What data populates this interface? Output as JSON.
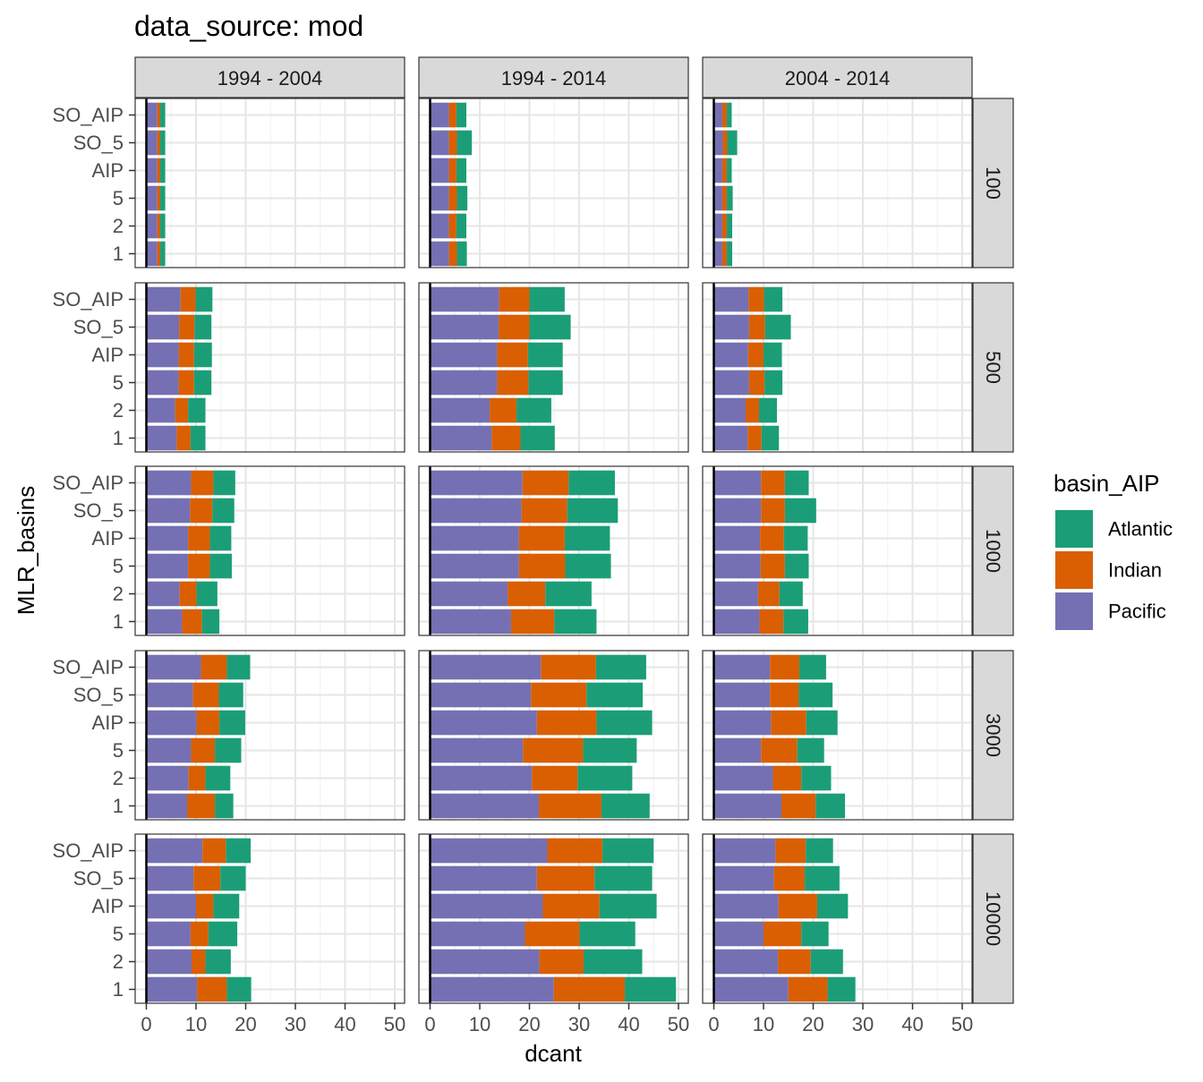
{
  "chart_data": {
    "type": "bar",
    "orientation": "horizontal",
    "stacked": true,
    "title": "data_source: mod",
    "xlabel": "dcant",
    "ylabel": "MLR_basins",
    "xlim": [
      0,
      50
    ],
    "xticks": [
      "0",
      "10",
      "20",
      "30",
      "40",
      "50"
    ],
    "grid": true,
    "legend": {
      "title": "basin_AIP",
      "position": "right",
      "entries": [
        {
          "name": "Atlantic",
          "color": "#1b9e77"
        },
        {
          "name": "Indian",
          "color": "#d95f02"
        },
        {
          "name": "Pacific",
          "color": "#7570b3"
        }
      ]
    },
    "stack_order": [
      "Pacific",
      "Indian",
      "Atlantic"
    ],
    "categories": [
      "SO_AIP",
      "SO_5",
      "AIP",
      "5",
      "2",
      "1"
    ],
    "col_facets": [
      "1994 - 2004",
      "1994 - 2014",
      "2004 - 2014"
    ],
    "row_facets": [
      "100",
      "500",
      "1000",
      "3000",
      "10000"
    ],
    "panels": [
      {
        "row": "100",
        "col": "1994 - 2004",
        "Pacific": [
          2.2,
          2.2,
          2.2,
          2.2,
          2.2,
          2.2
        ],
        "Indian": [
          0.6,
          0.6,
          0.6,
          0.6,
          0.6,
          0.6
        ],
        "Atlantic": [
          1.0,
          1.0,
          1.0,
          1.0,
          1.0,
          1.0
        ]
      },
      {
        "row": "100",
        "col": "1994 - 2014",
        "Pacific": [
          3.8,
          3.8,
          3.8,
          3.8,
          3.8,
          3.8
        ],
        "Indian": [
          1.5,
          1.6,
          1.5,
          1.6,
          1.5,
          1.6
        ],
        "Atlantic": [
          2.0,
          3.0,
          2.0,
          2.1,
          2.0,
          2.0
        ]
      },
      {
        "row": "100",
        "col": "2004 - 2014",
        "Pacific": [
          1.7,
          1.8,
          1.7,
          1.7,
          1.7,
          1.7
        ],
        "Indian": [
          0.9,
          0.9,
          0.9,
          0.9,
          0.9,
          0.9
        ],
        "Atlantic": [
          1.0,
          2.0,
          1.0,
          1.2,
          1.1,
          1.1
        ]
      },
      {
        "row": "500",
        "col": "1994 - 2004",
        "Pacific": [
          6.9,
          6.6,
          6.5,
          6.5,
          5.8,
          6.1
        ],
        "Indian": [
          3.0,
          3.1,
          3.1,
          3.1,
          2.6,
          2.8
        ],
        "Atlantic": [
          3.4,
          3.4,
          3.6,
          3.5,
          3.5,
          3.0
        ]
      },
      {
        "row": "500",
        "col": "1994 - 2014",
        "Pacific": [
          13.9,
          13.8,
          13.5,
          13.5,
          12.0,
          12.4
        ],
        "Indian": [
          6.1,
          6.2,
          6.2,
          6.3,
          5.4,
          5.8
        ],
        "Atlantic": [
          7.1,
          8.3,
          7.0,
          6.9,
          7.0,
          6.9
        ]
      },
      {
        "row": "500",
        "col": "2004 - 2014",
        "Pacific": [
          7.0,
          7.1,
          6.9,
          7.1,
          6.4,
          6.8
        ],
        "Indian": [
          3.1,
          3.2,
          3.1,
          3.1,
          2.7,
          2.8
        ],
        "Atlantic": [
          3.7,
          5.2,
          3.7,
          3.6,
          3.6,
          3.5
        ]
      },
      {
        "row": "1000",
        "col": "1994 - 2004",
        "Pacific": [
          9.0,
          8.8,
          8.4,
          8.4,
          6.7,
          7.2
        ],
        "Indian": [
          4.5,
          4.5,
          4.4,
          4.4,
          3.4,
          4.0
        ],
        "Atlantic": [
          4.4,
          4.4,
          4.3,
          4.4,
          4.2,
          3.5
        ]
      },
      {
        "row": "1000",
        "col": "1994 - 2014",
        "Pacific": [
          18.6,
          18.4,
          17.9,
          17.9,
          15.6,
          16.3
        ],
        "Indian": [
          9.3,
          9.2,
          9.2,
          9.3,
          7.6,
          8.7
        ],
        "Atlantic": [
          9.3,
          10.2,
          9.1,
          9.2,
          9.3,
          8.5
        ]
      },
      {
        "row": "1000",
        "col": "2004 - 2014",
        "Pacific": [
          9.5,
          9.5,
          9.3,
          9.4,
          8.9,
          9.2
        ],
        "Indian": [
          4.8,
          4.8,
          4.8,
          4.9,
          4.3,
          4.8
        ],
        "Atlantic": [
          4.8,
          6.3,
          4.8,
          4.8,
          4.7,
          5.0
        ]
      },
      {
        "row": "3000",
        "col": "1994 - 2004",
        "Pacific": [
          11.0,
          9.4,
          10.1,
          9.0,
          8.5,
          8.2
        ],
        "Indian": [
          5.2,
          5.2,
          4.6,
          4.8,
          3.4,
          5.6
        ],
        "Atlantic": [
          4.7,
          4.9,
          5.2,
          5.3,
          5.0,
          3.7
        ]
      },
      {
        "row": "3000",
        "col": "1994 - 2014",
        "Pacific": [
          22.3,
          20.3,
          21.5,
          18.7,
          20.5,
          21.9
        ],
        "Indian": [
          11.1,
          11.2,
          12.0,
          12.1,
          9.2,
          12.6
        ],
        "Atlantic": [
          10.1,
          11.3,
          11.2,
          10.8,
          11.0,
          9.7
        ]
      },
      {
        "row": "3000",
        "col": "2004 - 2014",
        "Pacific": [
          11.3,
          11.3,
          11.5,
          9.5,
          11.9,
          13.6
        ],
        "Indian": [
          5.9,
          5.8,
          7.1,
          7.3,
          5.7,
          6.9
        ],
        "Atlantic": [
          5.4,
          6.8,
          6.3,
          5.4,
          6.0,
          5.9
        ]
      },
      {
        "row": "10000",
        "col": "1994 - 2004",
        "Pacific": [
          11.3,
          9.5,
          10.0,
          8.9,
          9.1,
          10.2
        ],
        "Indian": [
          4.7,
          5.4,
          3.5,
          3.6,
          2.8,
          6.0
        ],
        "Atlantic": [
          5.0,
          5.1,
          5.2,
          5.8,
          5.1,
          4.9
        ]
      },
      {
        "row": "10000",
        "col": "1994 - 2014",
        "Pacific": [
          23.6,
          21.5,
          22.7,
          19.1,
          22.0,
          24.9
        ],
        "Indian": [
          11.1,
          11.6,
          11.4,
          11.0,
          8.9,
          14.3
        ],
        "Atlantic": [
          10.3,
          11.6,
          11.5,
          11.2,
          11.8,
          10.3
        ]
      },
      {
        "row": "10000",
        "col": "2004 - 2014",
        "Pacific": [
          12.4,
          12.1,
          13.0,
          10.0,
          12.9,
          15.0
        ],
        "Indian": [
          6.1,
          6.2,
          7.8,
          7.6,
          6.6,
          7.9
        ],
        "Atlantic": [
          5.5,
          7.0,
          6.2,
          5.5,
          6.5,
          5.6
        ]
      }
    ]
  }
}
